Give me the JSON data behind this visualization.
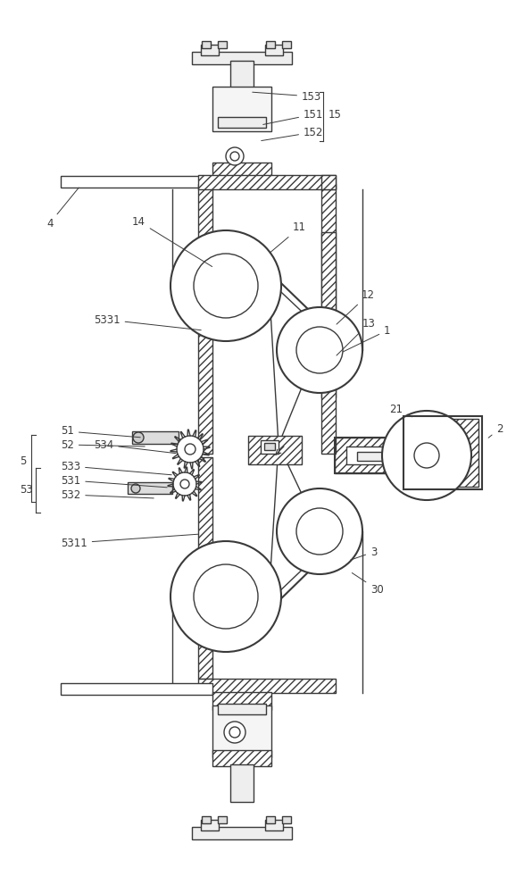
{
  "bg_color": "#ffffff",
  "line_color": "#3a3a3a",
  "label_color": "#3a3a3a",
  "fs": 8.5
}
